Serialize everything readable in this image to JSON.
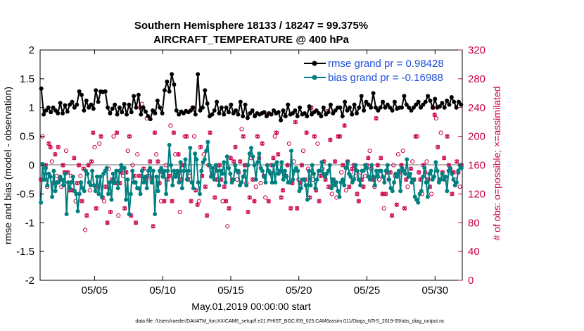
{
  "chart_data": {
    "type": "line",
    "title_line1": "Southern Hemisphere 18133 / 18247 = 99.375%",
    "title_line2": "AIRCRAFT_TEMPERATURE @ 400 hPa",
    "xlabel": "May.01,2019 00:00:00 start",
    "ylabel_left": "rmse and bias (model - observation)",
    "ylabel_right": "# of obs: o=possible; ×=assimilated",
    "footnote": "data file: /Users/raeder/DAI/ATM_forcXX/CAM6_setup/f.e21.FHIST_BGC.f09_025.CAM6assim.011/Diags_NTrS_2019-05/obs_diag_output.nc",
    "xlim": [
      1,
      32
    ],
    "ylim_left": [
      -2,
      2
    ],
    "ylim_right": [
      0,
      320
    ],
    "xticks": [
      5,
      10,
      15,
      20,
      25,
      30
    ],
    "xtick_labels": [
      "05/05",
      "05/10",
      "05/15",
      "05/20",
      "05/25",
      "05/30"
    ],
    "yticks_left": [
      2,
      1.5,
      1,
      0.5,
      0,
      -0.5,
      -1,
      -1.5,
      -2
    ],
    "yticks_left_labels": [
      "2",
      "1.5",
      "1",
      "0.5",
      "0",
      "-0.5",
      "-1",
      "-1.5",
      "-2"
    ],
    "yticks_right": [
      320,
      280,
      240,
      200,
      160,
      120,
      80,
      40,
      0
    ],
    "yticks_right_labels": [
      "320",
      "280",
      "240",
      "200",
      "160",
      "120",
      "80",
      "40",
      "0"
    ],
    "legend": {
      "rmse_label": "rmse grand pr = 0.98428",
      "bias_label": "bias grand pr = -0.16988"
    },
    "colors": {
      "rmse": "#000000",
      "bias": "#008080",
      "obs": "#c8004a",
      "zero_line": "#b4b4b4",
      "legend_text": "#1f4fd8"
    },
    "series": [
      {
        "name": "rmse",
        "values": [
          1.33,
          0.88,
          0.95,
          1.0,
          0.92,
          1.0,
          0.95,
          0.9,
          1.08,
          0.9,
          1.04,
          0.93,
          1.05,
          1.1,
          1.0,
          1.05,
          1.28,
          1.22,
          0.95,
          1.12,
          1.0,
          1.05,
          0.98,
          1.3,
          1.1,
          1.28,
          1.27,
          1.28,
          1.0,
          0.9,
          0.98,
          1.05,
          0.88,
          1.0,
          0.92,
          1.06,
          0.88,
          1.05,
          0.92,
          1.2,
          1.0,
          1.22,
          0.88,
          1.0,
          0.93,
          0.85,
          0.8,
          0.95,
          0.9,
          1.12,
          1.0,
          0.9,
          1.3,
          1.45,
          1.28,
          1.58,
          1.4,
          0.95,
          0.88,
          0.93,
          0.9,
          0.94,
          0.92,
          0.95,
          1.0,
          0.88,
          1.58,
          0.95,
          1.0,
          1.3,
          1.07,
          0.85,
          0.88,
          0.95,
          1.1,
          0.9,
          1.0,
          0.88,
          1.0,
          0.92,
          1.05,
          0.9,
          0.95,
          0.88,
          1.1,
          0.85,
          1.05,
          0.82,
          0.9,
          0.95,
          0.85,
          0.9,
          0.88,
          0.9,
          0.92,
          0.85,
          0.9,
          0.88,
          0.95,
          0.9,
          0.92,
          0.78,
          0.95,
          0.85,
          1.05,
          0.88,
          0.9,
          0.95,
          0.85,
          1.0,
          0.88,
          0.9,
          0.85,
          1.02,
          0.88,
          0.92,
          0.95,
          0.9,
          0.85,
          1.0,
          0.88,
          0.92,
          1.05,
          0.9,
          0.95,
          1.0,
          1.0,
          0.85,
          1.1,
          0.95,
          1.0,
          0.88,
          1.05,
          0.9,
          1.0,
          1.2,
          0.95,
          1.1,
          1.05,
          1.0,
          1.25,
          1.0,
          0.95,
          1.0,
          1.1,
          1.0,
          1.05,
          1.0,
          0.95,
          1.1,
          0.98,
          1.0,
          1.0,
          1.2,
          1.05,
          1.0,
          0.95,
          1.0,
          1.05,
          1.1,
          1.0,
          1.05,
          1.1,
          1.2,
          1.12,
          1.0,
          1.15,
          1.0,
          1.02,
          1.08,
          1.0,
          1.12,
          1.05,
          1.18,
          1.1,
          1.0,
          1.1,
          1.05
        ]
      },
      {
        "name": "bias",
        "values": [
          -0.65,
          0.02,
          -0.25,
          -0.05,
          -0.35,
          -0.15,
          -0.2,
          -0.55,
          -0.1,
          -0.45,
          -0.3,
          -0.3,
          -0.2,
          -0.25,
          -0.35,
          -0.15,
          -0.85,
          -0.3,
          -0.4,
          -0.3,
          -0.2,
          -0.45,
          -0.5,
          -0.8,
          -0.5,
          -0.3,
          -0.4,
          -0.45,
          -0.1,
          -0.15,
          -0.3,
          -0.35,
          -0.1,
          -0.35,
          -0.45,
          -0.2,
          -0.5,
          -0.2,
          -0.55,
          -0.15,
          -0.1,
          -0.05,
          -0.5,
          -0.3,
          -0.6,
          -0.15,
          -0.3,
          -0.1,
          -0.4,
          -0.1,
          0.0,
          -0.05,
          -0.05,
          -0.6,
          -0.25,
          -0.85,
          -0.5,
          -0.1,
          -0.3,
          -0.3,
          -0.4,
          -0.4,
          -0.5,
          -0.1,
          -0.3,
          -0.2,
          -0.4,
          -0.1,
          -0.05,
          -0.3,
          -0.1,
          -0.85,
          -0.2,
          -0.45,
          -0.1,
          -0.05,
          -0.2,
          -0.1,
          -0.5,
          -0.1,
          0.35,
          0.0,
          -0.35,
          -0.1,
          -0.2,
          -0.1,
          -0.3,
          0.05,
          -0.4,
          -0.1,
          0.1,
          -0.25,
          -0.1,
          0.3,
          -0.3,
          -0.4,
          0.2,
          0.1,
          -0.3,
          -0.5,
          -0.1,
          0.05,
          0.1,
          0.25,
          0.4,
          0.0,
          -0.2,
          -0.05,
          -0.25,
          0.0,
          -0.1,
          -0.35,
          -0.1,
          -0.15,
          0.05,
          -0.3,
          0.15,
          -0.05,
          -0.15,
          -0.3,
          -0.25,
          0.0,
          -0.1,
          -0.1,
          -0.35,
          -0.3,
          -0.2,
          -0.1,
          -0.35,
          0.0,
          0.2,
          0.3,
          0.15,
          0.0,
          -0.25,
          0.05,
          0.2,
          -0.05,
          -0.1,
          -0.2,
          -0.3,
          0.0,
          -0.1,
          -0.15,
          -0.3,
          0.0,
          -0.3,
          0.05,
          -0.15,
          -0.1,
          0.05,
          -0.25,
          -0.1,
          -0.2,
          -0.3,
          -0.3,
          0.25,
          -0.25,
          -0.1,
          -0.05,
          -0.1,
          -0.45,
          -0.4,
          -0.25,
          -0.25,
          -0.35,
          -0.6,
          -0.1,
          -0.35,
          0.0,
          -0.15,
          -0.4,
          -0.25,
          -0.1,
          -0.1,
          0.05,
          -0.15,
          -0.2,
          -0.15,
          -0.1,
          0.0,
          -0.4,
          -0.25,
          -0.35,
          -0.3,
          -0.45,
          -0.55,
          -0.3,
          -0.25,
          -0.35,
          -0.05,
          0.05,
          -0.15,
          -0.2,
          -0.3,
          -0.25,
          0.0,
          -0.1,
          -0.25,
          -0.35,
          -0.1,
          -0.1,
          0.0,
          -0.05,
          -0.2,
          -0.25,
          0.0,
          -0.2,
          -0.35,
          -0.1,
          -0.2,
          -0.1,
          -0.1,
          -0.2,
          -0.3,
          -0.1,
          0.0,
          -0.25,
          -0.4,
          -0.45,
          -0.3,
          -0.15,
          -0.2,
          -0.1,
          -0.45,
          -0.05,
          -0.1,
          -0.15,
          0.1,
          -0.2,
          -0.15,
          -0.3,
          -0.25,
          -0.55,
          -0.6,
          -0.65,
          -0.5,
          -0.45,
          -0.2,
          -0.05,
          -0.3,
          -0.55,
          -0.15,
          -0.1,
          -0.25,
          -0.2,
          0.05,
          -0.1,
          -0.3,
          -0.25,
          -0.15,
          -0.25,
          -0.2,
          -0.45,
          -0.1,
          -0.05,
          -0.15,
          -0.25,
          -0.35,
          -0.3,
          -0.1,
          0.0,
          -0.05
        ]
      },
      {
        "name": "obs_count",
        "values": [
          140,
          200,
          140,
          160,
          130,
          190,
          185,
          165,
          135,
          175,
          145,
          185,
          140,
          130,
          160,
          150,
          180,
          150,
          125,
          145,
          125,
          170,
          110,
          135,
          160,
          145,
          110,
          155,
          70,
          90,
          160,
          125,
          165,
          205,
          185,
          100,
          130,
          190,
          200,
          115,
          110,
          130,
          80,
          155,
          95,
          140,
          200,
          135,
          205,
          90,
          135,
          150,
          145,
          100,
          150,
          180,
          200,
          90,
          160,
          145,
          80,
          175,
          145,
          240,
          245,
          155,
          140,
          225,
          145,
          165,
          140,
          75,
          205,
          175,
          165,
          135,
          110,
          150,
          110,
          160,
          140,
          145,
          215,
          110,
          205,
          175,
          150,
          175,
          95,
          140,
          160,
          200,
          200,
          140,
          145,
          110,
          240,
          200,
          125,
          105,
          110,
          185,
          145,
          175,
          130,
          90,
          160,
          205,
          145,
          150,
          115,
          140,
          155,
          160,
          140,
          110,
          130,
          110,
          75,
          100,
          170,
          140,
          165,
          185,
          140,
          150,
          165,
          210,
          200,
          160,
          135,
          95,
          115,
          170,
          140,
          110,
          130,
          200,
          170,
          135,
          190,
          145,
          115,
          230,
          110,
          150,
          160,
          170,
          200,
          205,
          175,
          150,
          115,
          125,
          230,
          145,
          160,
          190,
          100,
          135,
          165,
          220,
          100,
          140,
          135,
          160,
          180,
          140,
          205,
          155,
          115,
          240,
          140,
          200,
          125,
          190,
          110,
          145,
          155,
          165,
          140,
          235,
          130,
          195,
          120,
          140,
          165,
          115,
          200,
          200,
          150,
          160,
          215,
          125,
          165,
          130,
          150,
          155,
          160,
          145,
          120,
          110,
          150,
          140,
          130,
          145,
          160,
          170,
          180,
          155,
          140,
          130,
          225,
          160,
          140,
          170,
          120,
          100,
          120,
          150,
          140,
          150,
          90,
          160,
          145,
          105,
          175,
          150,
          160,
          180,
          100,
          140,
          130,
          145,
          155,
          165,
          140,
          200,
          200,
          150,
          140,
          120,
          160,
          150,
          165,
          140,
          130,
          120,
          240,
          230,
          225,
          185,
          140,
          205,
          150,
          170,
          140,
          200,
          160,
          155,
          120,
          150,
          140,
          165,
          150,
          130,
          160
        ]
      }
    ]
  }
}
